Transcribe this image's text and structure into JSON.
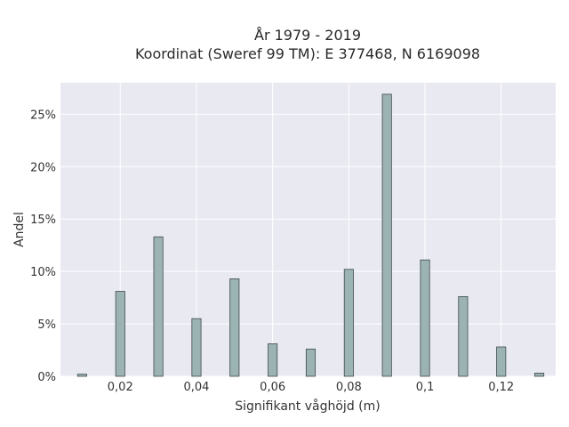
{
  "chart_data": {
    "type": "bar",
    "title": "År 1979 - 2019",
    "subtitle": "Koordinat (Sweref 99 TM): E 377468, N 6169098",
    "xlabel": "Signifikant våghöjd (m)",
    "ylabel": "Andel",
    "xlim": [
      0.0043,
      0.1343
    ],
    "ylim": [
      0,
      0.28
    ],
    "x_ticks": [
      {
        "value": 0.02,
        "label": "0,02"
      },
      {
        "value": 0.04,
        "label": "0,04"
      },
      {
        "value": 0.06,
        "label": "0,06"
      },
      {
        "value": 0.08,
        "label": "0,08"
      },
      {
        "value": 0.1,
        "label": "0,1"
      },
      {
        "value": 0.12,
        "label": "0,12"
      }
    ],
    "y_ticks": [
      {
        "value": 0,
        "label": "0%"
      },
      {
        "value": 0.05,
        "label": "5%"
      },
      {
        "value": 0.1,
        "label": "10%"
      },
      {
        "value": 0.15,
        "label": "15%"
      },
      {
        "value": 0.2,
        "label": "20%"
      },
      {
        "value": 0.25,
        "label": "25%"
      }
    ],
    "bar_width": 0.0024,
    "bars": [
      {
        "x": 0.01,
        "y": 0.002
      },
      {
        "x": 0.02,
        "y": 0.081
      },
      {
        "x": 0.03,
        "y": 0.133
      },
      {
        "x": 0.04,
        "y": 0.055
      },
      {
        "x": 0.05,
        "y": 0.093
      },
      {
        "x": 0.06,
        "y": 0.031
      },
      {
        "x": 0.07,
        "y": 0.026
      },
      {
        "x": 0.08,
        "y": 0.102
      },
      {
        "x": 0.09,
        "y": 0.269
      },
      {
        "x": 0.1,
        "y": 0.111
      },
      {
        "x": 0.11,
        "y": 0.076
      },
      {
        "x": 0.12,
        "y": 0.028
      },
      {
        "x": 0.13,
        "y": 0.003
      }
    ],
    "grid": true,
    "colors": {
      "plot_background": "#e9e9f2",
      "grid": "#ffffff",
      "bar_fill": "#9cb3b3",
      "bar_stroke": "#3f4a4a"
    }
  }
}
